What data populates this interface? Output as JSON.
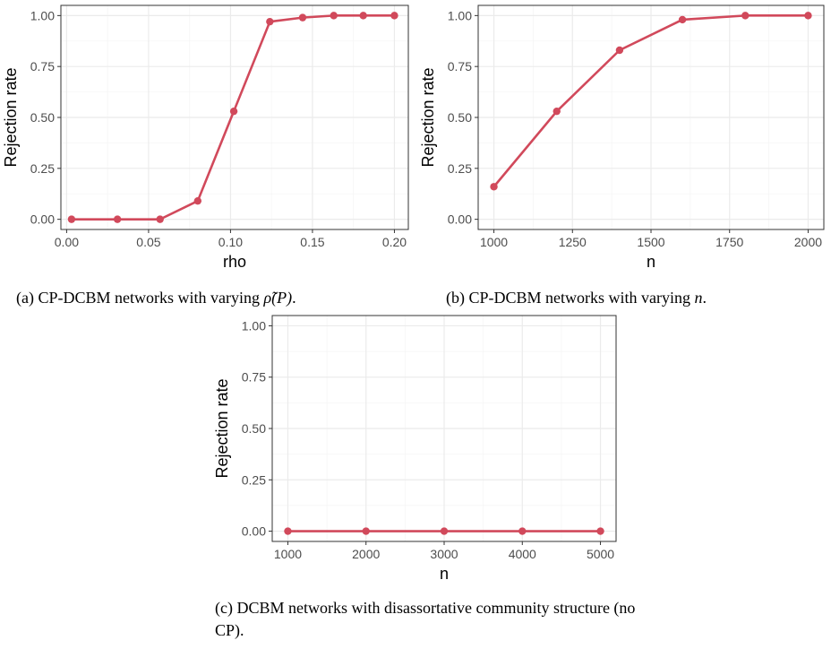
{
  "colors": {
    "line": "#d1495b",
    "grid_major": "#ebebeb",
    "grid_minor": "#f5f5f5",
    "panel_border": "#333333"
  },
  "figure": {
    "panels": [
      {
        "caption": {
          "prefix": "(a) CP-DCBM networks with varying ",
          "math": "ρ̃(P)",
          "suffix": "."
        }
      },
      {
        "caption": {
          "prefix": "(b) CP-DCBM networks with varying ",
          "math": "n",
          "suffix": "."
        }
      },
      {
        "caption": {
          "prefix": "(c) DCBM networks with disassortative community structure (no CP).",
          "math": "",
          "suffix": ""
        }
      }
    ]
  },
  "chart_data": [
    {
      "type": "line",
      "xlabel": "rho",
      "ylabel": "Rejection rate",
      "xlim": [
        -0.0035,
        0.2085
      ],
      "ylim": [
        -0.05,
        1.05
      ],
      "xticks": [
        0.0,
        0.05,
        0.1,
        0.15,
        0.2
      ],
      "xtick_labels": [
        "0.00",
        "0.05",
        "0.10",
        "0.15",
        "0.20"
      ],
      "yticks": [
        0.0,
        0.25,
        0.5,
        0.75,
        1.0
      ],
      "ytick_labels": [
        "0.00",
        "0.25",
        "0.50",
        "0.75",
        "1.00"
      ],
      "grid": true,
      "series": [
        {
          "x": [
            0.003,
            0.031,
            0.057,
            0.08,
            0.102,
            0.124,
            0.144,
            0.163,
            0.181,
            0.2
          ],
          "y": [
            0.0,
            0.0,
            0.0,
            0.09,
            0.53,
            0.97,
            0.99,
            1.0,
            1.0,
            1.0
          ]
        }
      ]
    },
    {
      "type": "line",
      "xlabel": "n",
      "ylabel": "Rejection rate",
      "xlim": [
        950,
        2050
      ],
      "ylim": [
        -0.05,
        1.05
      ],
      "xticks": [
        1000,
        1250,
        1500,
        1750,
        2000
      ],
      "xtick_labels": [
        "1000",
        "1250",
        "1500",
        "1750",
        "2000"
      ],
      "yticks": [
        0.0,
        0.25,
        0.5,
        0.75,
        1.0
      ],
      "ytick_labels": [
        "0.00",
        "0.25",
        "0.50",
        "0.75",
        "1.00"
      ],
      "grid": true,
      "series": [
        {
          "x": [
            1000,
            1200,
            1400,
            1600,
            1800,
            2000
          ],
          "y": [
            0.16,
            0.53,
            0.83,
            0.98,
            1.0,
            1.0
          ]
        }
      ]
    },
    {
      "type": "line",
      "xlabel": "n",
      "ylabel": "Rejection rate",
      "xlim": [
        800,
        5200
      ],
      "ylim": [
        -0.05,
        1.05
      ],
      "xticks": [
        1000,
        2000,
        3000,
        4000,
        5000
      ],
      "xtick_labels": [
        "1000",
        "2000",
        "3000",
        "4000",
        "5000"
      ],
      "yticks": [
        0.0,
        0.25,
        0.5,
        0.75,
        1.0
      ],
      "ytick_labels": [
        "0.00",
        "0.25",
        "0.50",
        "0.75",
        "1.00"
      ],
      "grid": true,
      "series": [
        {
          "x": [
            1000,
            2000,
            3000,
            4000,
            5000
          ],
          "y": [
            0.0,
            0.0,
            0.0,
            0.0,
            0.0
          ]
        }
      ]
    }
  ]
}
